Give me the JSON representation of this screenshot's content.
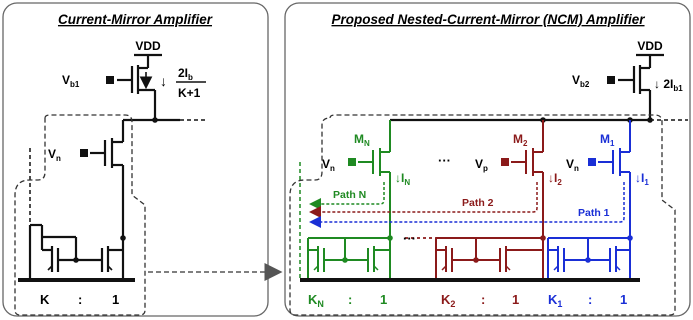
{
  "panels": {
    "left_title": "Current-Mirror Amplifier",
    "right_title": "Proposed Nested-Current-Mirror (NCM) Amplifier"
  },
  "left": {
    "vdd": "VDD",
    "vb1_main": "V",
    "vb1_sub": "b1",
    "current_num": "2I",
    "current_num_sub": "b",
    "current_den": "K+1",
    "vn_main": "V",
    "vn_sub": "n",
    "ratio_k": "K",
    "ratio_colon": ":",
    "ratio_1": "1"
  },
  "right": {
    "vdd": "VDD",
    "vb2_main": "V",
    "vb2_sub": "b2",
    "ib_main": "↓ 2I",
    "ib_sub": "b1",
    "mn_main": "M",
    "mn_sub": "N",
    "m2_main": "M",
    "m2_sub": "2",
    "m1_main": "M",
    "m1_sub": "1",
    "vn_main": "V",
    "vn_sub": "n",
    "vp_main": "V",
    "vp_sub": "p",
    "vn1_main": "V",
    "vn1_sub": "n",
    "in_main": "↓I",
    "in_sub": "N",
    "i2_main": "↓I",
    "i2_sub": "2",
    "i1_main": "↓I",
    "i1_sub": "1",
    "dots_top": "···",
    "dots_bottom": "···",
    "path_n": "Path N",
    "path_2": "Path 2",
    "path_1": "Path 1",
    "kn_main": "K",
    "kn_sub": "N",
    "k2_main": "K",
    "k2_sub": "2",
    "k1_main": "K",
    "k1_sub": "1",
    "colon": ":",
    "one": "1"
  },
  "colors": {
    "green": "#1f8a22",
    "red": "#8b1a1a",
    "blue": "#1a2fd6",
    "black": "#111111"
  }
}
